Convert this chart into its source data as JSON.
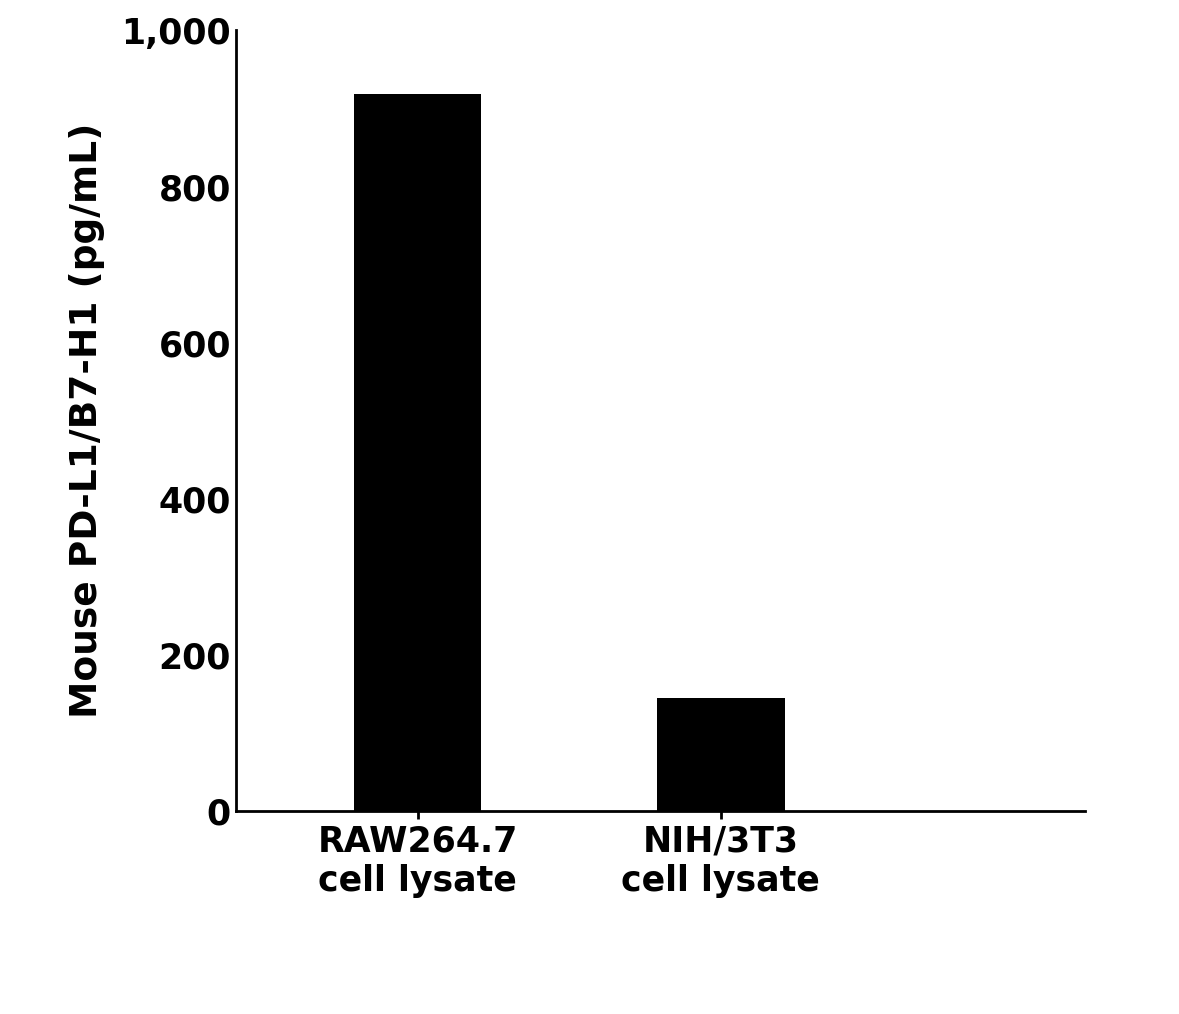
{
  "categories": [
    "RAW264.7\ncell lysate",
    "NIH/3T3\ncell lysate"
  ],
  "values": [
    918.7,
    144.6
  ],
  "bar_color": "#000000",
  "ylabel": "Mouse PD-L1/B7-H1 (pg/mL)",
  "ylim": [
    0,
    1000
  ],
  "yticks": [
    0,
    200,
    400,
    600,
    800,
    1000
  ],
  "bar_width": 0.42,
  "bar_positions": [
    1,
    2
  ],
  "xlim": [
    0.4,
    3.2
  ],
  "background_color": "#ffffff",
  "ylabel_fontsize": 27,
  "tick_fontsize": 25,
  "xlabel_fontsize": 25
}
